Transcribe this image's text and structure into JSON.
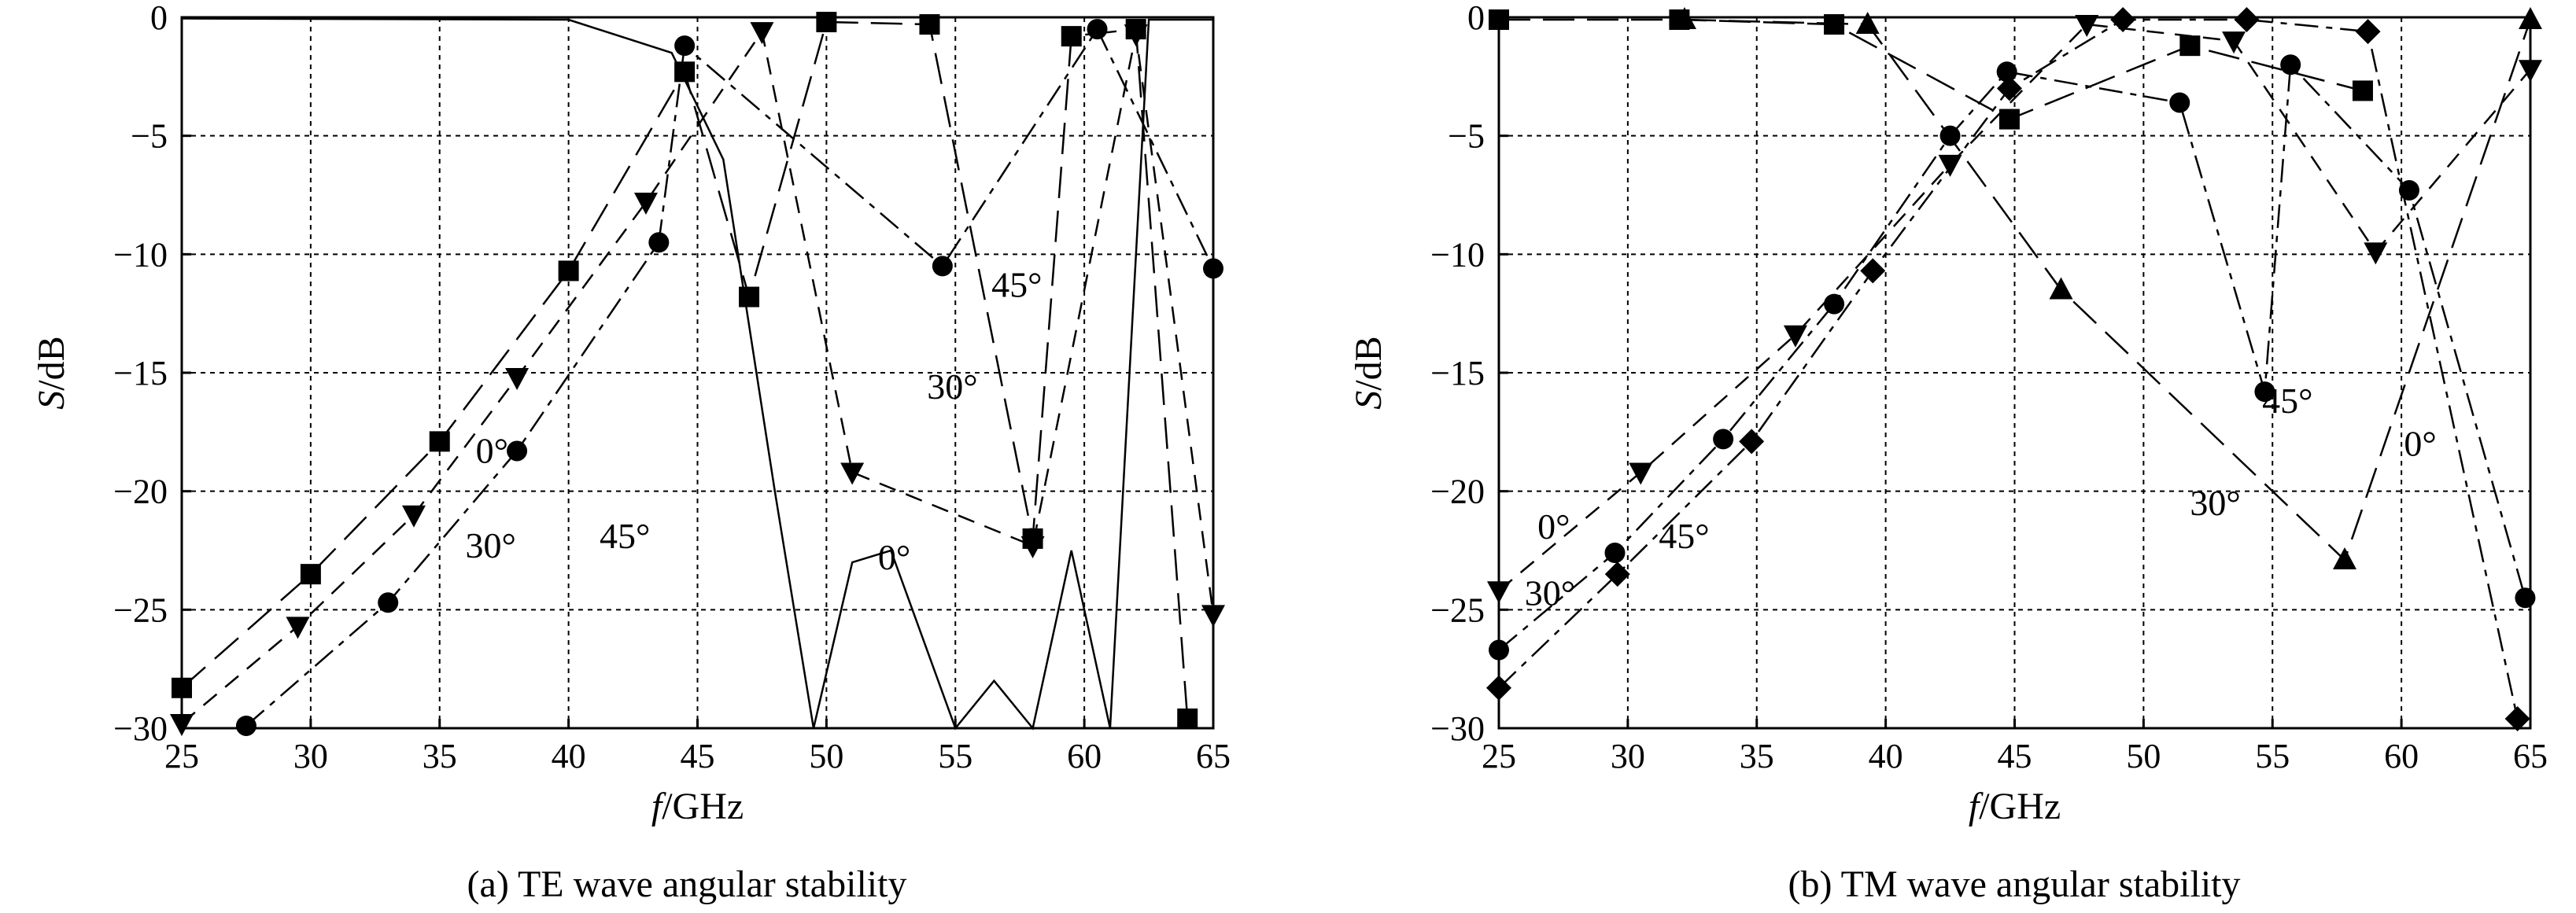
{
  "chart_data": [
    {
      "type": "line",
      "panel_label": "(a)",
      "caption": "(a) TE wave angular stability",
      "xlabel_italic": "f",
      "xlabel_unit": "/GHz",
      "ylabel_italic": "S",
      "ylabel_unit": "/dB",
      "xlim": [
        25,
        65
      ],
      "ylim": [
        -30,
        0
      ],
      "xticks": [
        25,
        30,
        35,
        40,
        45,
        50,
        55,
        60,
        65
      ],
      "yticks": [
        0,
        -5,
        -10,
        -15,
        -20,
        -25,
        -30
      ],
      "grid": true,
      "annotations": [
        {
          "text": "0°",
          "x": 36.4,
          "y": -18.8
        },
        {
          "text": "30°",
          "x": 36.0,
          "y": -22.8
        },
        {
          "text": "45°",
          "x": 41.2,
          "y": -22.4
        },
        {
          "text": "45°",
          "x": 56.4,
          "y": -11.8
        },
        {
          "text": "30°",
          "x": 53.9,
          "y": -16.1
        },
        {
          "text": "0°",
          "x": 52.0,
          "y": -23.3
        }
      ],
      "series": [
        {
          "marker": "square",
          "dash": "long",
          "x": [
            25,
            30,
            35,
            40,
            44.5,
            47,
            50,
            54,
            58,
            59.5,
            62,
            64
          ],
          "y": [
            -28.3,
            -23.5,
            -17.9,
            -10.7,
            -2.3,
            -11.8,
            -0.2,
            -0.3,
            -22,
            -0.8,
            -0.5,
            -29.6
          ]
        },
        {
          "marker": "triangle-down",
          "dash": "short",
          "x": [
            25,
            29.5,
            34,
            38,
            43,
            47.5,
            51,
            58,
            62,
            65
          ],
          "y": [
            -29.8,
            -25.7,
            -21,
            -15.2,
            -7.8,
            -0.6,
            -19.2,
            -22.3,
            -0.7,
            -25.2
          ]
        },
        {
          "marker": "circle",
          "dash": "dashdot",
          "x": [
            27.5,
            33,
            38,
            43.5,
            44.5,
            54.5,
            60.5,
            65
          ],
          "y": [
            -29.9,
            -24.7,
            -18.3,
            -9.5,
            -1.2,
            -10.5,
            -0.5,
            -10.6
          ]
        },
        {
          "marker": "none",
          "dash": "solid",
          "x": [
            25,
            40,
            44,
            46,
            48,
            49.5,
            51,
            52.5,
            55,
            56.5,
            58,
            59.5,
            61,
            62.5,
            64,
            65
          ],
          "y": [
            -0.05,
            -0.1,
            -1.5,
            -6,
            -20,
            -30,
            -23,
            -22.5,
            -30,
            -28,
            -30,
            -22.5,
            -30,
            -0.1,
            -0.1,
            -0.1
          ]
        }
      ]
    },
    {
      "type": "line",
      "panel_label": "(b)",
      "caption": "(b) TM wave angular stability",
      "xlabel_italic": "f",
      "xlabel_unit": "/GHz",
      "ylabel_italic": "S",
      "ylabel_unit": "/dB",
      "xlim": [
        25,
        65
      ],
      "ylim": [
        -30,
        0
      ],
      "xticks": [
        25,
        30,
        35,
        40,
        45,
        50,
        55,
        60,
        65
      ],
      "yticks": [
        0,
        -5,
        -10,
        -15,
        -20,
        -25,
        -30
      ],
      "grid": true,
      "annotations": [
        {
          "text": "0°",
          "x": 26.5,
          "y": -22.0
        },
        {
          "text": "30°",
          "x": 26.0,
          "y": -24.8
        },
        {
          "text": "45°",
          "x": 31.2,
          "y": -22.4
        },
        {
          "text": "45°",
          "x": 54.6,
          "y": -16.7
        },
        {
          "text": "0°",
          "x": 60.1,
          "y": -18.5
        },
        {
          "text": "30°",
          "x": 51.8,
          "y": -21.0
        }
      ],
      "series": [
        {
          "marker": "square",
          "dash": "long",
          "x": [
            25,
            32,
            38,
            44.8,
            51.8,
            58.5
          ],
          "y": [
            -0.1,
            -0.1,
            -0.3,
            -4.3,
            -1.2,
            -3.1
          ]
        },
        {
          "marker": "triangle-down",
          "dash": "short",
          "x": [
            25,
            30.5,
            36.5,
            42.5,
            47.8,
            53.5,
            59,
            65
          ],
          "y": [
            -24.2,
            -19.2,
            -13.4,
            -6.2,
            -0.3,
            -1.0,
            -9.9,
            -2.2
          ]
        },
        {
          "marker": "circle",
          "dash": "dashdot",
          "x": [
            25,
            29.5,
            33.7,
            38,
            42.5,
            44.7,
            51.4,
            54.7,
            55.7,
            60.3,
            64.8
          ],
          "y": [
            -26.7,
            -22.6,
            -17.8,
            -12.1,
            -5,
            -2.3,
            -3.6,
            -15.8,
            -2.0,
            -7.3,
            -24.5
          ]
        },
        {
          "marker": "diamond",
          "dash": "dashdot",
          "x": [
            25,
            29.6,
            34.8,
            39.5,
            44.8,
            49.2,
            54,
            58.7,
            64.5
          ],
          "y": [
            -28.3,
            -23.5,
            -17.9,
            -10.7,
            -3.0,
            -0.1,
            -0.1,
            -0.6,
            -29.6
          ]
        },
        {
          "marker": "triangle-up",
          "dash": "long",
          "x": [
            32.2,
            39.3,
            46.8,
            57.8,
            65
          ],
          "y": [
            -0.1,
            -0.3,
            -11.5,
            -22.9,
            -0.1
          ]
        }
      ]
    }
  ]
}
